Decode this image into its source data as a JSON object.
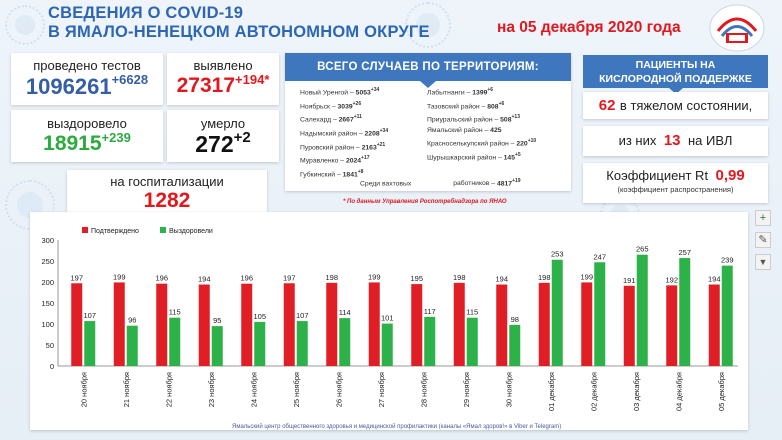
{
  "header": {
    "title_line1": "СВЕДЕНИЯ О COVID-19",
    "title_line2": "В ЯМАЛО-НЕНЕЦКОМ АВТОНОМНОМ ОКРУГЕ",
    "date": "на 05 декабря 2020 года"
  },
  "stats": {
    "tests": {
      "label": "проведено тестов",
      "value": "1096261",
      "delta": "+6628"
    },
    "detected": {
      "label": "выявлено",
      "value": "27317",
      "delta": "+194*"
    },
    "recovered": {
      "label": "выздоровело",
      "value": "18915",
      "delta": "+239"
    },
    "died": {
      "label": "умерло",
      "value": "272",
      "delta": "+2"
    },
    "hospital": {
      "label": "на госпитализации",
      "value": "1282"
    }
  },
  "territory": {
    "title": "ВСЕГО СЛУЧАЕВ ПО ТЕРРИТОРИЯМ:",
    "left": [
      {
        "name": "Новый Уренгой –",
        "value": "5053",
        "delta": "+34"
      },
      {
        "name": "Ноябрьск –",
        "value": "3039",
        "delta": "+26"
      },
      {
        "name": "Салехард –",
        "value": "2667",
        "delta": "+11"
      },
      {
        "name": "Надымский район –",
        "value": "2208",
        "delta": "+34"
      },
      {
        "name": "Пуровский район –",
        "value": "2163",
        "delta": "+21"
      },
      {
        "name": "Муравленко –",
        "value": "2024",
        "delta": "+17"
      },
      {
        "name": "Губкинский –",
        "value": "1841",
        "delta": "+8"
      }
    ],
    "right": [
      {
        "name": "Лабытнанги –",
        "value": "1399",
        "delta": "+6"
      },
      {
        "name": "Тазовский район –",
        "value": "808",
        "delta": "+6"
      },
      {
        "name": "Приуральский район –",
        "value": "508",
        "delta": "+13"
      },
      {
        "name": "Ямальский район –",
        "value": "425",
        "delta": ""
      },
      {
        "name": "Красноселькупский район –",
        "value": "220",
        "delta": "+10"
      },
      {
        "name": "Шурышкарский район –",
        "value": "145",
        "delta": "+5"
      }
    ],
    "watch_left": "Среди вахтовых",
    "watch_right": "работников –",
    "watch_value": "4817",
    "watch_delta": "+19"
  },
  "oxygen": {
    "title_line1": "ПАЦИЕНТЫ НА",
    "title_line2": "КИСЛОРОДНОЙ ПОДДЕРЖКЕ",
    "severe_value": "62",
    "severe_label": "в тяжелом состоянии,",
    "ivl_prefix": "из них",
    "ivl_value": "13",
    "ivl_suffix": "на  ИВЛ",
    "rt_label": "Коэффициент Rt",
    "rt_value": "0,99",
    "rt_note": "(коэффициент распространения)"
  },
  "source_note": "* По данным Управления  Роспотребнадзора по ЯНАО",
  "footer": "Ямальский центр общественного здоровья и медицинской профилактики (каналы «Ямал здоров!» в Viber  и Telegram)",
  "toolbar": {
    "icons": [
      "plus-icon",
      "edit-icon",
      "filter-icon"
    ],
    "plus": "+",
    "edit": "✎",
    "filter": "▼"
  },
  "colors": {
    "confirmed": "#e01e25",
    "recovered": "#2db24a",
    "brand_blue": "#3f77bf"
  },
  "chart_data": {
    "type": "bar",
    "categories": [
      "20 ноября",
      "21 ноября",
      "22 ноября",
      "23 ноября",
      "24 ноября",
      "25 ноября",
      "26 ноября",
      "27 ноября",
      "28 ноября",
      "29 ноября",
      "30 ноября",
      "01 декабря",
      "02 декабря",
      "03 декабря",
      "04 декабря",
      "05 декабря"
    ],
    "series": [
      {
        "name": "Подтверждено",
        "values": [
          197,
          199,
          196,
          194,
          196,
          197,
          198,
          199,
          195,
          198,
          194,
          198,
          199,
          191,
          192,
          194
        ]
      },
      {
        "name": "Выздоровели",
        "values": [
          107,
          96,
          115,
          95,
          105,
          107,
          114,
          101,
          117,
          115,
          98,
          253,
          247,
          265,
          257,
          239
        ]
      }
    ],
    "ylim": [
      0,
      300
    ],
    "yticks": [
      0,
      50,
      100,
      150,
      200,
      250,
      300
    ],
    "grid": false,
    "legend_position": "top-left"
  }
}
